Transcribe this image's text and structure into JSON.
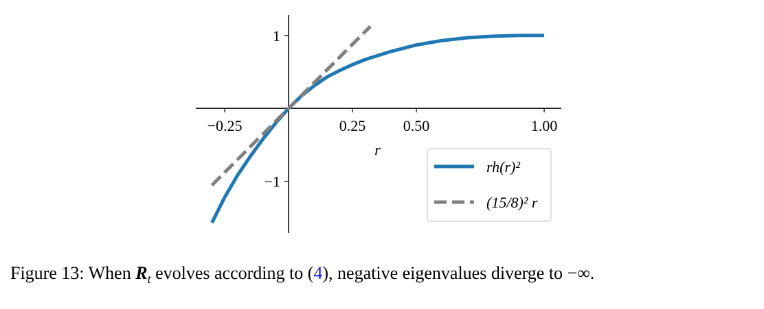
{
  "chart_data": {
    "type": "line",
    "xlabel": "r",
    "xlim": [
      -0.363,
      1.067
    ],
    "ylim": [
      -1.71,
      1.28
    ],
    "xticks": [
      {
        "value": -0.25,
        "label": "−0.25"
      },
      {
        "value": 0.25,
        "label": "0.25"
      },
      {
        "value": 0.5,
        "label": "0.50"
      },
      {
        "value": 1.0,
        "label": "1.00"
      }
    ],
    "yticks": [
      {
        "value": -1,
        "label": "−1"
      },
      1
    ],
    "legend": "lower right",
    "series": [
      {
        "name": "rh(r)²",
        "color": "#1f77b4",
        "dash": false,
        "x": [
          -0.3,
          -0.25,
          -0.2,
          -0.15,
          -0.1,
          -0.05,
          0,
          0.05,
          0.1,
          0.15,
          0.2,
          0.25,
          0.3,
          0.4,
          0.5,
          0.6,
          0.7,
          0.8,
          0.9,
          1.0
        ],
        "values": [
          -1.57,
          -1.22,
          -0.92,
          -0.66,
          -0.42,
          -0.2,
          0,
          0.17,
          0.31,
          0.43,
          0.52,
          0.6,
          0.67,
          0.78,
          0.87,
          0.93,
          0.97,
          0.99,
          1.0,
          1.0
        ]
      },
      {
        "name": "(15/8)² r",
        "color": "#808080",
        "dash": true,
        "x": [
          -0.3,
          0.32
        ],
        "values": [
          -1.055,
          1.125
        ]
      }
    ]
  },
  "caption": {
    "prefix": "Figure 13: When ",
    "symbol": "R",
    "sub": "t",
    "middle": " evolves according to (",
    "ref": "4",
    "suffix": "), negative eigenvalues diverge to −∞."
  }
}
